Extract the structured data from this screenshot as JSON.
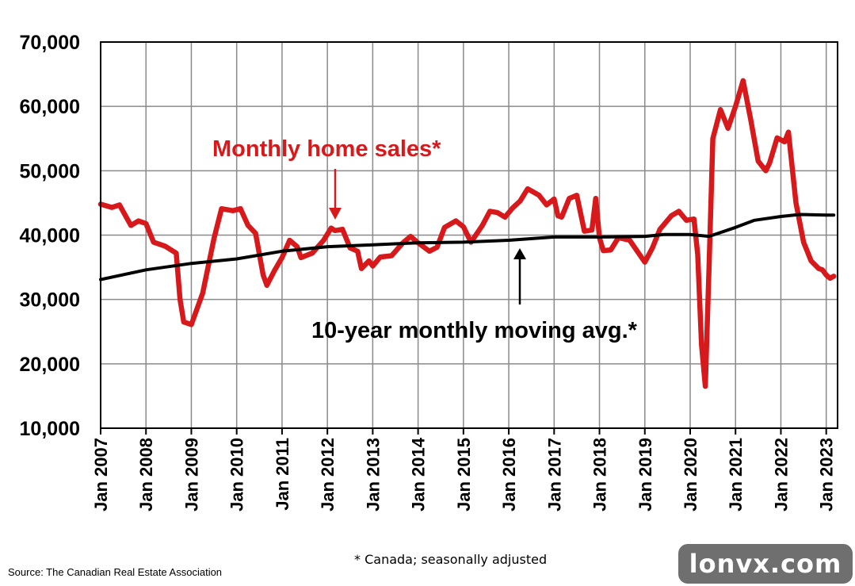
{
  "chart_data": {
    "type": "line",
    "ylim": [
      10000,
      70000
    ],
    "y_ticks": [
      "70,000",
      "60,000",
      "50,000",
      "40,000",
      "30,000",
      "20,000",
      "10,000"
    ],
    "x_ticks": [
      "Jan 2007",
      "Jan 2008",
      "Jan 2009",
      "Jan 2010",
      "Jan 2011",
      "Jan 2012",
      "Jan 2013",
      "Jan 2014",
      "Jan 2015",
      "Jan 2016",
      "Jan 2017",
      "Jan 2018",
      "Jan 2019",
      "Jan 2020",
      "Jan 2021",
      "Jan 2022",
      "Jan 2023"
    ],
    "grid": true,
    "series": [
      {
        "name": "Monthly home sales*",
        "color": "#d7191c",
        "points": [
          [
            "2007-01",
            44800
          ],
          [
            "2007-04",
            44300
          ],
          [
            "2007-06",
            44700
          ],
          [
            "2007-09",
            41500
          ],
          [
            "2007-11",
            42200
          ],
          [
            "2008-01",
            41800
          ],
          [
            "2008-03",
            38900
          ],
          [
            "2008-06",
            38300
          ],
          [
            "2008-09",
            37200
          ],
          [
            "2008-10",
            30000
          ],
          [
            "2008-11",
            26500
          ],
          [
            "2009-01",
            26100
          ],
          [
            "2009-04",
            31000
          ],
          [
            "2009-07",
            39500
          ],
          [
            "2009-09",
            44100
          ],
          [
            "2009-12",
            43800
          ],
          [
            "2010-02",
            44100
          ],
          [
            "2010-04",
            41500
          ],
          [
            "2010-06",
            40300
          ],
          [
            "2010-08",
            33800
          ],
          [
            "2010-09",
            32200
          ],
          [
            "2010-11",
            34500
          ],
          [
            "2011-01",
            36500
          ],
          [
            "2011-03",
            39200
          ],
          [
            "2011-05",
            38200
          ],
          [
            "2011-06",
            36500
          ],
          [
            "2011-09",
            37200
          ],
          [
            "2011-12",
            39200
          ],
          [
            "2012-02",
            41100
          ],
          [
            "2012-03",
            40700
          ],
          [
            "2012-05",
            40900
          ],
          [
            "2012-07",
            38000
          ],
          [
            "2012-09",
            37500
          ],
          [
            "2012-10",
            34800
          ],
          [
            "2012-12",
            36000
          ],
          [
            "2013-01",
            35200
          ],
          [
            "2013-03",
            36600
          ],
          [
            "2013-06",
            36800
          ],
          [
            "2013-09",
            38800
          ],
          [
            "2013-11",
            39800
          ],
          [
            "2014-01",
            38800
          ],
          [
            "2014-04",
            37500
          ],
          [
            "2014-06",
            38100
          ],
          [
            "2014-08",
            41200
          ],
          [
            "2014-11",
            42200
          ],
          [
            "2015-01",
            41300
          ],
          [
            "2015-03",
            38900
          ],
          [
            "2015-06",
            41500
          ],
          [
            "2015-08",
            43700
          ],
          [
            "2015-10",
            43500
          ],
          [
            "2015-12",
            42800
          ],
          [
            "2016-02",
            44200
          ],
          [
            "2016-04",
            45300
          ],
          [
            "2016-06",
            47200
          ],
          [
            "2016-09",
            46200
          ],
          [
            "2016-11",
            44700
          ],
          [
            "2017-01",
            45600
          ],
          [
            "2017-02",
            43000
          ],
          [
            "2017-03",
            42800
          ],
          [
            "2017-05",
            45700
          ],
          [
            "2017-07",
            46200
          ],
          [
            "2017-09",
            40600
          ],
          [
            "2017-11",
            40800
          ],
          [
            "2017-12",
            45700
          ],
          [
            "2018-01",
            39600
          ],
          [
            "2018-02",
            37600
          ],
          [
            "2018-04",
            37700
          ],
          [
            "2018-06",
            39600
          ],
          [
            "2018-09",
            39200
          ],
          [
            "2018-11",
            37500
          ],
          [
            "2019-01",
            35800
          ],
          [
            "2019-03",
            38000
          ],
          [
            "2019-05",
            40900
          ],
          [
            "2019-08",
            43000
          ],
          [
            "2019-10",
            43700
          ],
          [
            "2019-12",
            42300
          ],
          [
            "2020-02",
            42500
          ],
          [
            "2020-03",
            37000
          ],
          [
            "2020-04",
            23000
          ],
          [
            "2020-05",
            16500
          ],
          [
            "2020-06",
            35000
          ],
          [
            "2020-07",
            55000
          ],
          [
            "2020-09",
            59500
          ],
          [
            "2020-11",
            56600
          ],
          [
            "2021-01",
            60000
          ],
          [
            "2021-03",
            64000
          ],
          [
            "2021-05",
            58000
          ],
          [
            "2021-07",
            51500
          ],
          [
            "2021-09",
            50000
          ],
          [
            "2021-10",
            51200
          ],
          [
            "2021-12",
            55100
          ],
          [
            "2022-02",
            54500
          ],
          [
            "2022-03",
            56000
          ],
          [
            "2022-05",
            45000
          ],
          [
            "2022-07",
            38900
          ],
          [
            "2022-09",
            36000
          ],
          [
            "2022-11",
            34800
          ],
          [
            "2022-12",
            34600
          ],
          [
            "2023-01",
            33800
          ],
          [
            "2023-02",
            33300
          ],
          [
            "2023-03",
            33600
          ]
        ]
      },
      {
        "name": "10-year monthly moving avg.*",
        "color": "#000000",
        "points": [
          [
            "2007-01",
            33100
          ],
          [
            "2008-01",
            34600
          ],
          [
            "2009-01",
            35600
          ],
          [
            "2010-01",
            36300
          ],
          [
            "2011-01",
            37500
          ],
          [
            "2012-01",
            38200
          ],
          [
            "2013-01",
            38500
          ],
          [
            "2014-01",
            38800
          ],
          [
            "2015-01",
            38900
          ],
          [
            "2016-01",
            39200
          ],
          [
            "2017-01",
            39700
          ],
          [
            "2018-01",
            39700
          ],
          [
            "2019-01",
            39800
          ],
          [
            "2019-06",
            40100
          ],
          [
            "2020-01",
            40100
          ],
          [
            "2020-06",
            39800
          ],
          [
            "2021-01",
            41200
          ],
          [
            "2021-06",
            42300
          ],
          [
            "2022-01",
            42900
          ],
          [
            "2022-06",
            43200
          ],
          [
            "2023-01",
            43100
          ],
          [
            "2023-03",
            43100
          ]
        ]
      }
    ]
  },
  "annotations": {
    "sales_label": "Monthly home sales*",
    "avg_label": "10-year monthly moving avg.*"
  },
  "footnote": "* Canada; seasonally adjusted",
  "source": "Source: The Canadian Real Estate Association",
  "watermark": "lonvx.com"
}
